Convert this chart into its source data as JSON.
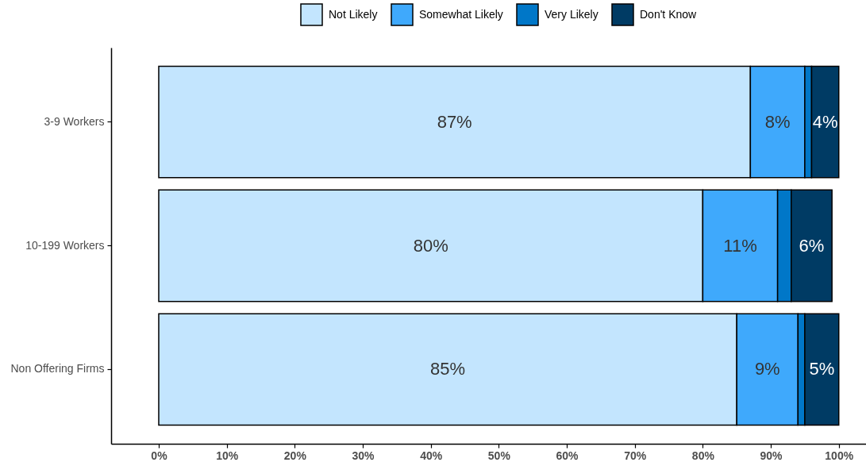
{
  "chart_data": {
    "type": "bar",
    "orientation": "horizontal",
    "stacked": true,
    "categories": [
      "3-9 Workers",
      "10-199 Workers",
      "Non Offering Firms"
    ],
    "series": [
      {
        "name": "Not Likely",
        "color": "#c3e5fe",
        "values": [
          87,
          80,
          85
        ],
        "value_labels": [
          "87%",
          "80%",
          "85%"
        ]
      },
      {
        "name": "Somewhat Likely",
        "color": "#3fa9fc",
        "values": [
          8,
          11,
          9
        ],
        "value_labels": [
          "8%",
          "11%",
          "9%"
        ]
      },
      {
        "name": "Very Likely",
        "color": "#0077c8",
        "values": [
          1,
          2,
          1
        ]
      },
      {
        "name": "Don't Know",
        "color": "#003b64",
        "values": [
          4,
          6,
          5
        ],
        "value_labels": [
          "4%",
          "6%",
          "5%"
        ]
      }
    ],
    "xlim": [
      -7,
      104
    ],
    "xticks": [
      {
        "value": 0,
        "label": "0%"
      },
      {
        "value": 10,
        "label": "10%"
      },
      {
        "value": 20,
        "label": "20%"
      },
      {
        "value": 30,
        "label": "30%"
      },
      {
        "value": 40,
        "label": "40%"
      },
      {
        "value": 50,
        "label": "50%"
      },
      {
        "value": 60,
        "label": "60%"
      },
      {
        "value": 70,
        "label": "70%"
      },
      {
        "value": 80,
        "label": "80%"
      },
      {
        "value": 90,
        "label": "90%"
      },
      {
        "value": 100,
        "label": "100%"
      }
    ],
    "legend": "top",
    "grid": false
  }
}
